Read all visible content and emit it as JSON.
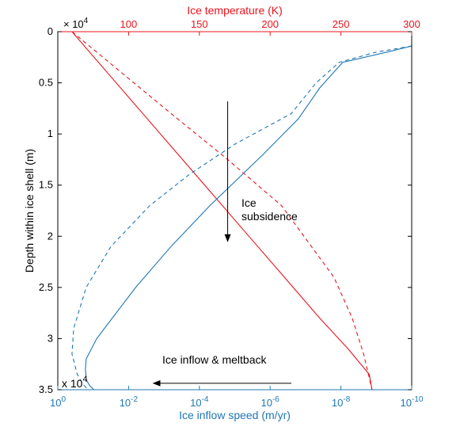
{
  "colors": {
    "temperature": "#e8141c",
    "speed": "#1f77b4",
    "axes": "#000000",
    "arrow": "#000000"
  },
  "chart_data": {
    "type": "line",
    "y_axis": {
      "label": "Depth within ice shell (m)",
      "range": [
        0,
        35000
      ],
      "inverted": true,
      "ticks": [
        0,
        5000,
        10000,
        15000,
        20000,
        25000,
        30000,
        35000
      ],
      "tick_labels": [
        "0",
        "0.5",
        "1",
        "1.5",
        "2",
        "2.5",
        "3",
        "3.5"
      ],
      "multiplier_top": "× 10",
      "multiplier_top_exp": "4",
      "multiplier_bottom": "x 10",
      "multiplier_bottom_exp": "4"
    },
    "x_top": {
      "label": "Ice temperature (K)",
      "range": [
        50,
        300
      ],
      "ticks": [
        100,
        150,
        200,
        250,
        300
      ],
      "tick_labels": [
        "100",
        "150",
        "200",
        "250",
        "300"
      ]
    },
    "x_bottom": {
      "label": "Ice inflow speed (m/yr)",
      "scale": "log-reversed",
      "range_exp": [
        0,
        -10
      ],
      "ticks_exp": [
        0,
        -2,
        -4,
        -6,
        -8,
        -10
      ],
      "tick_base": "10",
      "tick_exps": [
        "0",
        "-2",
        "-4",
        "-6",
        "-8",
        "-10"
      ]
    },
    "series": [
      {
        "axis": "top",
        "style": "solid",
        "color": "#e8141c",
        "points": [
          [
            60,
            0
          ],
          [
            85,
            4000
          ],
          [
            110,
            8000
          ],
          [
            135,
            12000
          ],
          [
            160,
            16000
          ],
          [
            185,
            20000
          ],
          [
            210,
            24000
          ],
          [
            235,
            28000
          ],
          [
            255,
            31000
          ],
          [
            270,
            33500
          ],
          [
            272,
            35000
          ]
        ]
      },
      {
        "axis": "top",
        "style": "dashed",
        "color": "#e8141c",
        "points": [
          [
            60,
            0
          ],
          [
            130,
            8000
          ],
          [
            170,
            12500
          ],
          [
            208,
            17000
          ],
          [
            245,
            24000
          ],
          [
            258,
            28000
          ],
          [
            266,
            31500
          ],
          [
            272,
            35000
          ]
        ]
      },
      {
        "axis": "bottom",
        "style": "solid",
        "color": "#1f77b4",
        "exp_points": [
          [
            -10,
            1400
          ],
          [
            -9.3,
            2000
          ],
          [
            -8.05,
            3000
          ],
          [
            -7.4,
            5500
          ],
          [
            -6.8,
            8500
          ],
          [
            -5.8,
            12000
          ],
          [
            -4.3,
            17000
          ],
          [
            -3.2,
            21000
          ],
          [
            -2.2,
            25000
          ],
          [
            -1.1,
            30000
          ],
          [
            -0.8,
            32000
          ],
          [
            -0.78,
            33000
          ],
          [
            -0.8,
            34000
          ],
          [
            -0.9,
            34600
          ],
          [
            -1.02,
            35000
          ]
        ]
      },
      {
        "axis": "bottom",
        "style": "dashed",
        "color": "#1f77b4",
        "exp_points": [
          [
            -10,
            1400
          ],
          [
            -9.0,
            2000
          ],
          [
            -7.95,
            3000
          ],
          [
            -7.3,
            5000
          ],
          [
            -6.6,
            8000
          ],
          [
            -5.0,
            11000
          ],
          [
            -3.7,
            14000
          ],
          [
            -2.6,
            17000
          ],
          [
            -1.5,
            21000
          ],
          [
            -0.8,
            25000
          ],
          [
            -0.45,
            29000
          ],
          [
            -0.4,
            31500
          ],
          [
            -0.55,
            33500
          ],
          [
            -0.7,
            34400
          ],
          [
            -0.85,
            35000
          ]
        ]
      }
    ],
    "annotations": [
      {
        "text_lines": [
          "Ice",
          "subsidence"
        ],
        "arrow": {
          "x_temp": 170,
          "from_depth": 6800,
          "to_depth": 20500
        }
      },
      {
        "text_lines": [
          "Ice inflow & meltback"
        ],
        "arrow": {
          "from_exp": -6.6,
          "to_exp": -2.7,
          "depth": 32200
        }
      }
    ]
  }
}
